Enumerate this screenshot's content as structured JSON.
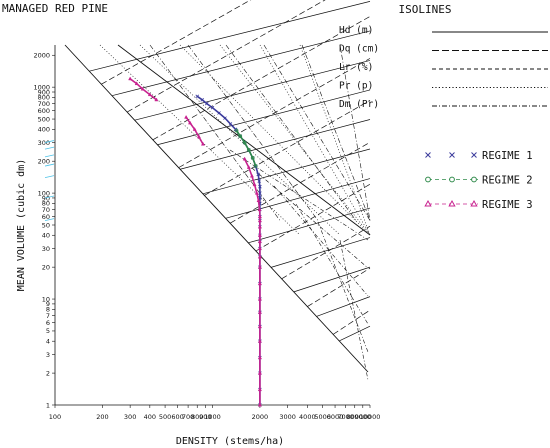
{
  "chart_data": {
    "type": "line",
    "title": "MANAGED RED PINE",
    "xlabel": "DENSITY (stems/ha)",
    "ylabel": "MEAN VOLUME (cubic dm)",
    "x_scale": "log",
    "y_scale": "log",
    "xlim": [
      100,
      10000
    ],
    "ylim": [
      1,
      2500
    ],
    "x_ticks": [
      100,
      200,
      300,
      400,
      500,
      600,
      700,
      800,
      900,
      1000,
      2000,
      3000,
      4000,
      5000,
      6000,
      7000,
      8000,
      9000,
      10000
    ],
    "x_tick_labels": [
      "100",
      "200",
      "300",
      "400",
      "500",
      "600",
      "700",
      "800",
      "900",
      "1000",
      "2000",
      "3000",
      "4000",
      "5000",
      "6000",
      "7000",
      "8000",
      "9000",
      "10000"
    ],
    "y_ticks": [
      1,
      2,
      3,
      4,
      5,
      6,
      7,
      8,
      9,
      10,
      20,
      30,
      40,
      50,
      60,
      70,
      80,
      90,
      100,
      200,
      300,
      400,
      500,
      600,
      700,
      800,
      900,
      1000,
      2000
    ],
    "y_tick_labels": [
      "1",
      "2",
      "3",
      "4",
      "5",
      "6",
      "7",
      "8",
      "9",
      "10",
      "20",
      "30",
      "40",
      "50",
      "60",
      "70",
      "80",
      "90",
      "100",
      "200",
      "300",
      "400",
      "500",
      "600",
      "700",
      "800",
      "900",
      "1000",
      "2000"
    ],
    "legend": {
      "title": "ISOLINES",
      "position": "top-right",
      "isolines": [
        {
          "label": "Hd (m)",
          "style": "solid"
        },
        {
          "label": "Dq (cm)",
          "style": "dashed"
        },
        {
          "label": "Lr (%)",
          "style": "fine-dashed"
        },
        {
          "label": "Pr (p)",
          "style": "dotted"
        },
        {
          "label": "Dm (Pr)",
          "style": "dash-dot"
        }
      ],
      "regimes": [
        {
          "label": "REGIME 1",
          "marker": "x",
          "color": "#3b3b9c"
        },
        {
          "label": "REGIME 2",
          "marker": "circle",
          "color": "#2f8a4a"
        },
        {
          "label": "REGIME 3",
          "marker": "triangle",
          "color": "#c8228f"
        }
      ]
    },
    "series": [
      {
        "name": "REGIME 1",
        "color": "#3b3b9c",
        "x": [
          2000,
          2000,
          2000,
          2000,
          2000,
          2000,
          2000,
          2000,
          2000,
          2000,
          2000,
          2000,
          2000,
          2000,
          2000,
          2000,
          2000,
          2000,
          2000,
          2000,
          2000,
          2000,
          1980,
          1950,
          1880,
          1800,
          1700,
          1600,
          1500,
          1400,
          1300,
          1200,
          1100,
          1000,
          920,
          860,
          800
        ],
        "y": [
          1,
          1.4,
          2,
          2.8,
          4,
          5.5,
          7.5,
          10,
          14,
          20,
          25,
          30,
          35,
          40,
          48,
          55,
          60,
          70,
          80,
          90,
          100,
          115,
          130,
          150,
          180,
          215,
          255,
          300,
          345,
          400,
          450,
          510,
          570,
          640,
          700,
          760,
          820
        ]
      },
      {
        "name": "REGIME 2",
        "color": "#2f8a4a",
        "x": [
          1880,
          1800,
          1700,
          1600,
          1500,
          1420
        ],
        "y": [
          180,
          215,
          255,
          300,
          345,
          390
        ]
      },
      {
        "name": "REGIME 3",
        "color": "#c8228f",
        "x": [
          2000,
          2000,
          2000,
          2000,
          2000,
          2000,
          2000,
          2000,
          2000,
          2000,
          2000,
          2000,
          2000,
          2000,
          2000,
          2000,
          2000,
          1990,
          1960,
          1910,
          1850,
          1780,
          1700,
          1600
        ],
        "y": [
          1,
          1.4,
          2,
          2.8,
          4,
          5.5,
          7.5,
          10,
          14,
          20,
          25,
          30,
          35,
          40,
          48,
          55,
          60,
          70,
          85,
          100,
          120,
          145,
          175,
          210
        ]
      },
      {
        "name": "REGIME 3",
        "color": "#c8228f",
        "x": [
          870,
          820,
          770,
          720,
          680
        ],
        "y": [
          290,
          340,
          400,
          460,
          520
        ]
      },
      {
        "name": "REGIME 3",
        "color": "#c8228f",
        "x": [
          440,
          400,
          360,
          330,
          300
        ],
        "y": [
          760,
          850,
          960,
          1080,
          1200
        ]
      }
    ],
    "left_ticks_color": "#4fc3e8"
  }
}
